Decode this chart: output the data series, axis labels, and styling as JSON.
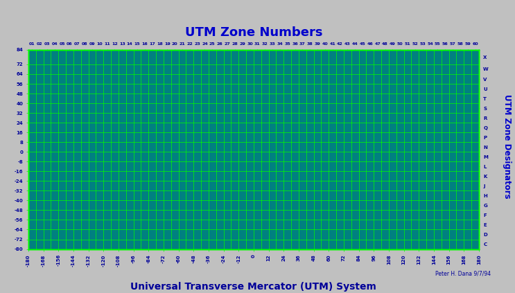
{
  "title": "UTM Zone Numbers",
  "xlabel": "Universal Transverse Mercator (UTM) System",
  "right_label": "UTM Zone Designators",
  "credit": "Peter H. Dana 9/7/94",
  "bg_color": "#008080",
  "grid_color": "#00FF00",
  "coast_color": "#001010",
  "text_color": "#000099",
  "title_color": "#0000CC",
  "xlabel_color": "#000099",
  "xlim": [
    -180,
    180
  ],
  "ylim": [
    -80,
    84
  ],
  "xticks": [
    -180,
    -168,
    -156,
    -144,
    -132,
    -120,
    -108,
    -96,
    -84,
    -72,
    -60,
    -48,
    -36,
    -24,
    -12,
    0,
    12,
    24,
    36,
    48,
    60,
    72,
    84,
    96,
    108,
    120,
    132,
    144,
    156,
    168,
    180
  ],
  "yticks": [
    -80,
    -72,
    -64,
    -56,
    -48,
    -40,
    -32,
    -24,
    -16,
    -8,
    0,
    8,
    16,
    24,
    32,
    40,
    48,
    56,
    64,
    72,
    84
  ],
  "zone_numbers": [
    "01",
    "02",
    "03",
    "04",
    "05",
    "06",
    "07",
    "08",
    "09",
    "10",
    "11",
    "12",
    "13",
    "14",
    "15",
    "16",
    "17",
    "18",
    "19",
    "20",
    "21",
    "22",
    "23",
    "24",
    "25",
    "26",
    "27",
    "28",
    "29",
    "30",
    "31",
    "32",
    "33",
    "34",
    "35",
    "36",
    "37",
    "38",
    "39",
    "40",
    "41",
    "42",
    "43",
    "44",
    "45",
    "46",
    "47",
    "48",
    "49",
    "50",
    "51",
    "52",
    "53",
    "54",
    "55",
    "56",
    "57",
    "58",
    "59",
    "60"
  ],
  "zone_designators": [
    "C",
    "D",
    "E",
    "F",
    "G",
    "H",
    "J",
    "K",
    "L",
    "M",
    "N",
    "P",
    "Q",
    "R",
    "S",
    "T",
    "U",
    "V",
    "W",
    "X"
  ],
  "lat_band_starts": [
    -80,
    -72,
    -64,
    -56,
    -48,
    -40,
    -32,
    -24,
    -16,
    -8,
    0,
    8,
    16,
    24,
    32,
    40,
    48,
    56,
    64,
    72
  ],
  "lat_band_sizes": [
    8,
    8,
    8,
    8,
    8,
    8,
    8,
    8,
    8,
    8,
    8,
    8,
    8,
    8,
    8,
    8,
    8,
    8,
    8,
    12
  ],
  "fig_bg": "#C0C0C0",
  "fig_width": 7.43,
  "fig_height": 4.23,
  "dpi": 100
}
